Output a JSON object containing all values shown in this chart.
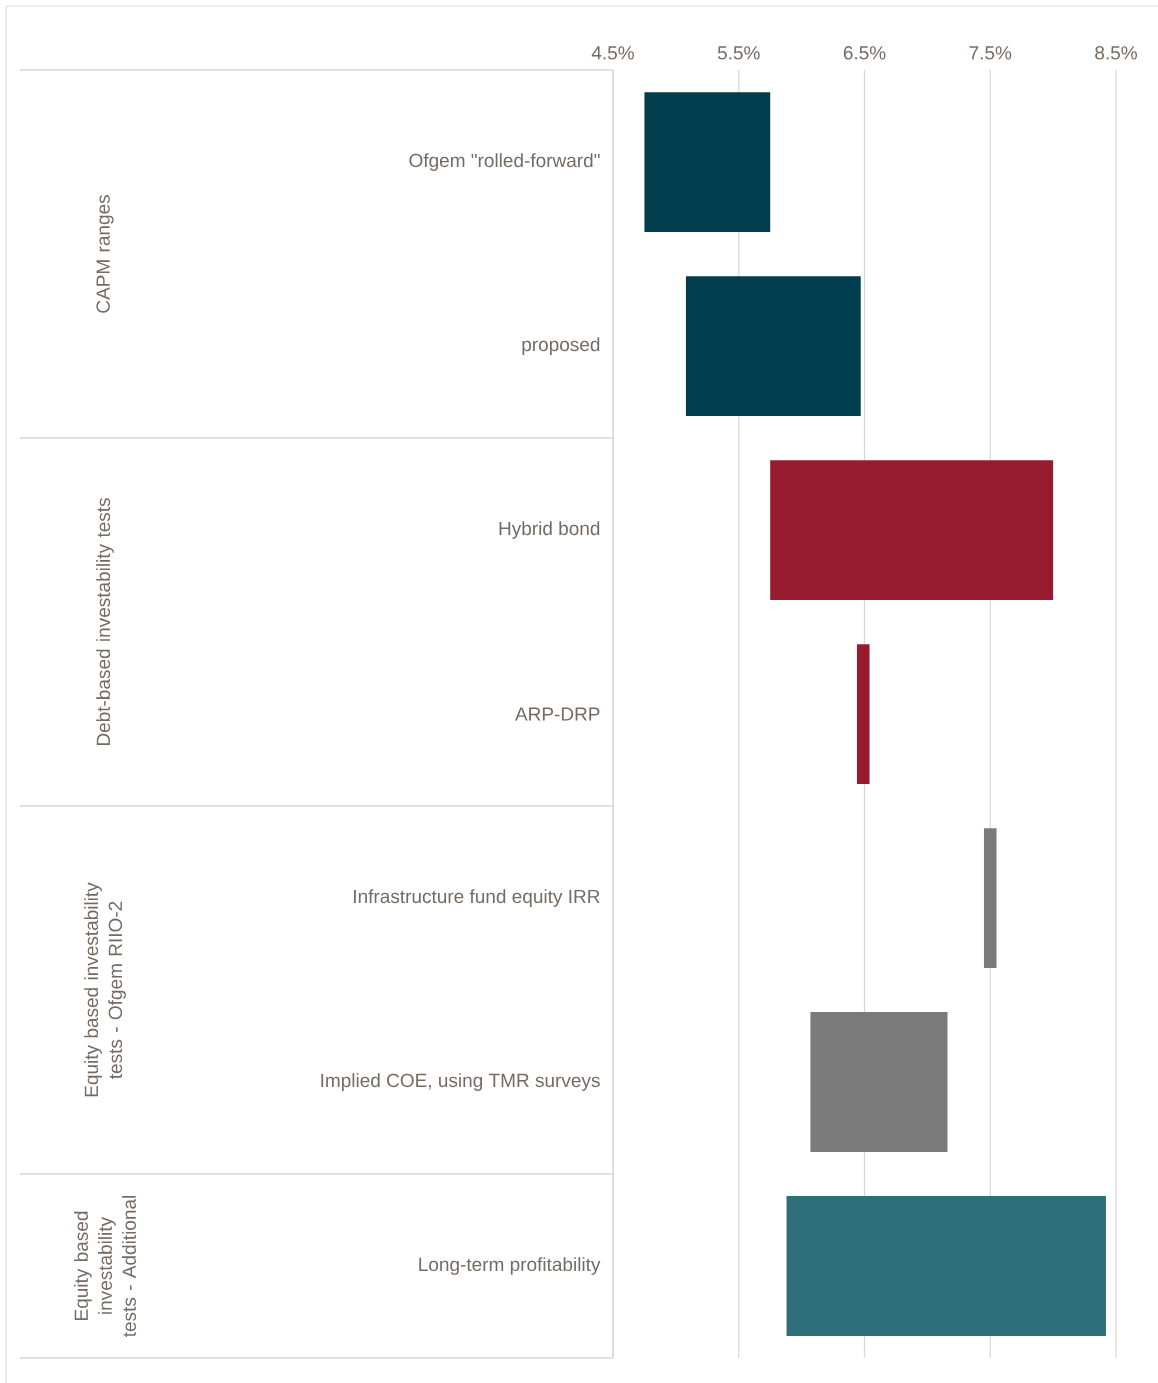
{
  "chart_data": {
    "type": "bar",
    "orientation": "horizontal",
    "categories": [
      "Ofgem \"rolled-forward\"",
      "proposed",
      "Hybrid bond",
      "ARP-DRP",
      "Infrastructure fund equity IRR",
      "Implied COE, using TMR surveys",
      "Long-term profitability"
    ],
    "base": [
      4.75,
      5.08,
      5.75,
      6.44,
      7.45,
      6.07,
      5.88
    ],
    "values": [
      1.0,
      1.39,
      2.25,
      0.1,
      0.1,
      1.09,
      2.54
    ],
    "colors": [
      "#023d4d",
      "#023d4d",
      "#971b2f",
      "#971b2f",
      "#7a7a7a",
      "#7a7a7a",
      "#2e6f79"
    ],
    "xlim": [
      4.5,
      8.5
    ],
    "xticks": [
      {
        "value": 4.5,
        "label": "4.5%"
      },
      {
        "value": 5.5,
        "label": "5.5%"
      },
      {
        "value": 6.5,
        "label": "6.5%"
      },
      {
        "value": 7.5,
        "label": "7.5%"
      },
      {
        "value": 8.5,
        "label": "8.5%"
      }
    ],
    "grid": "x",
    "annotations": [
      "CAPM ranges",
      "Debt-based investability  tests",
      "Equity based investability tests - Ofgem RIIO-2",
      "Equity based investability tests - Additional"
    ]
  }
}
